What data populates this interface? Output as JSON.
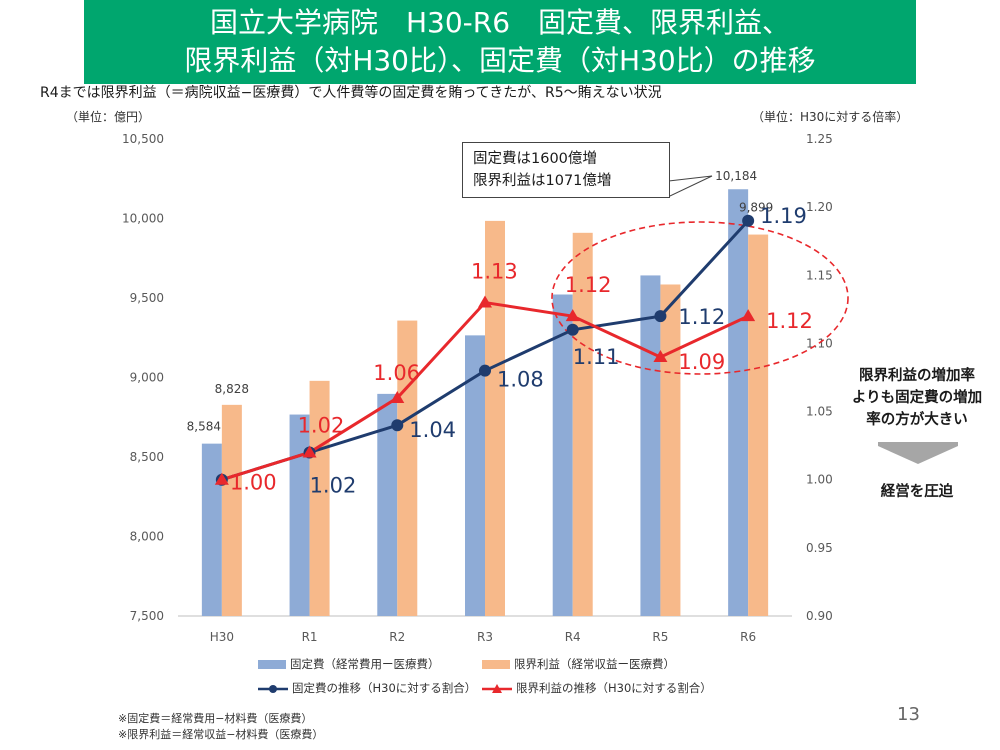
{
  "slide": {
    "title_line1": "国立大学病院　H30-R6　固定費、限界利益、",
    "title_line2": "限界利益（対H30比）、固定費（対H30比）の推移",
    "subtitle": "R4までは限界利益（＝病院収益−医療費）で人件費等の固定費を賄ってきたが、R5〜賄えない状況",
    "unit_left": "（単位：億円）",
    "unit_right": "（単位：H30に対する倍率）",
    "callout_line1": "固定費は1600億増",
    "callout_line2": "限界利益は1071億増",
    "side_note": [
      "限界利益の増加率",
      "よりも固定費の増加",
      "率の方が大きい"
    ],
    "side_result": "経営を圧迫",
    "footnote1": "※固定費＝経常費用−材料費（医療費）",
    "footnote2": "※限界利益＝経常収益−材料費（医療費）",
    "page_number": "13"
  },
  "chart_data": {
    "type": "bar",
    "categories": [
      "H30",
      "R1",
      "R2",
      "R3",
      "R4",
      "R5",
      "R6"
    ],
    "y_left": {
      "min": 7500,
      "max": 10500,
      "ticks": [
        7500,
        8000,
        8500,
        9000,
        9500,
        10000,
        10500
      ],
      "tick_labels": [
        "7,500",
        "8,000",
        "8,500",
        "9,000",
        "9,500",
        "10,000",
        "10,500"
      ]
    },
    "y_right": {
      "min": 0.9,
      "max": 1.25,
      "ticks": [
        0.9,
        0.95,
        1.0,
        1.05,
        1.1,
        1.15,
        1.2,
        1.25
      ],
      "tick_labels": [
        "0.90",
        "0.95",
        "1.00",
        "1.05",
        "1.10",
        "1.15",
        "1.20",
        "1.25"
      ]
    },
    "series": [
      {
        "name": "固定費（経常費用ー医療費）",
        "kind": "bar",
        "axis": "left",
        "color": "#8eabd6",
        "values": [
          8584,
          8767,
          8897,
          9265,
          9522,
          9642,
          10184
        ],
        "labels": [
          "8,584",
          "",
          "",
          "",
          "",
          "",
          "10,184"
        ]
      },
      {
        "name": "限界利益（経常収益ー医療費）",
        "kind": "bar",
        "axis": "left",
        "color": "#f7b98a",
        "values": [
          8828,
          8979,
          9358,
          9985,
          9910,
          9585,
          9899
        ],
        "labels": [
          "8,828",
          "",
          "",
          "",
          "",
          "",
          "9,899"
        ]
      },
      {
        "name": "固定費の推移（H30に対する割合）",
        "kind": "line",
        "axis": "right",
        "color": "#1f3c6e",
        "marker": "circle",
        "values": [
          1.0,
          1.02,
          1.04,
          1.08,
          1.11,
          1.12,
          1.19
        ],
        "labels": [
          "",
          "1.02",
          "1.04",
          "1.08",
          "1.11",
          "1.12",
          "1.19"
        ]
      },
      {
        "name": "限界利益の推移（H30に対する割合）",
        "kind": "line",
        "axis": "right",
        "color": "#e8282c",
        "marker": "triangle",
        "values": [
          1.0,
          1.02,
          1.06,
          1.13,
          1.12,
          1.09,
          1.12
        ],
        "labels": [
          "1.00",
          "1.02",
          "1.06",
          "1.13",
          "1.12",
          "1.09",
          "1.12"
        ]
      }
    ],
    "grid": false,
    "legend_position": "bottom"
  }
}
